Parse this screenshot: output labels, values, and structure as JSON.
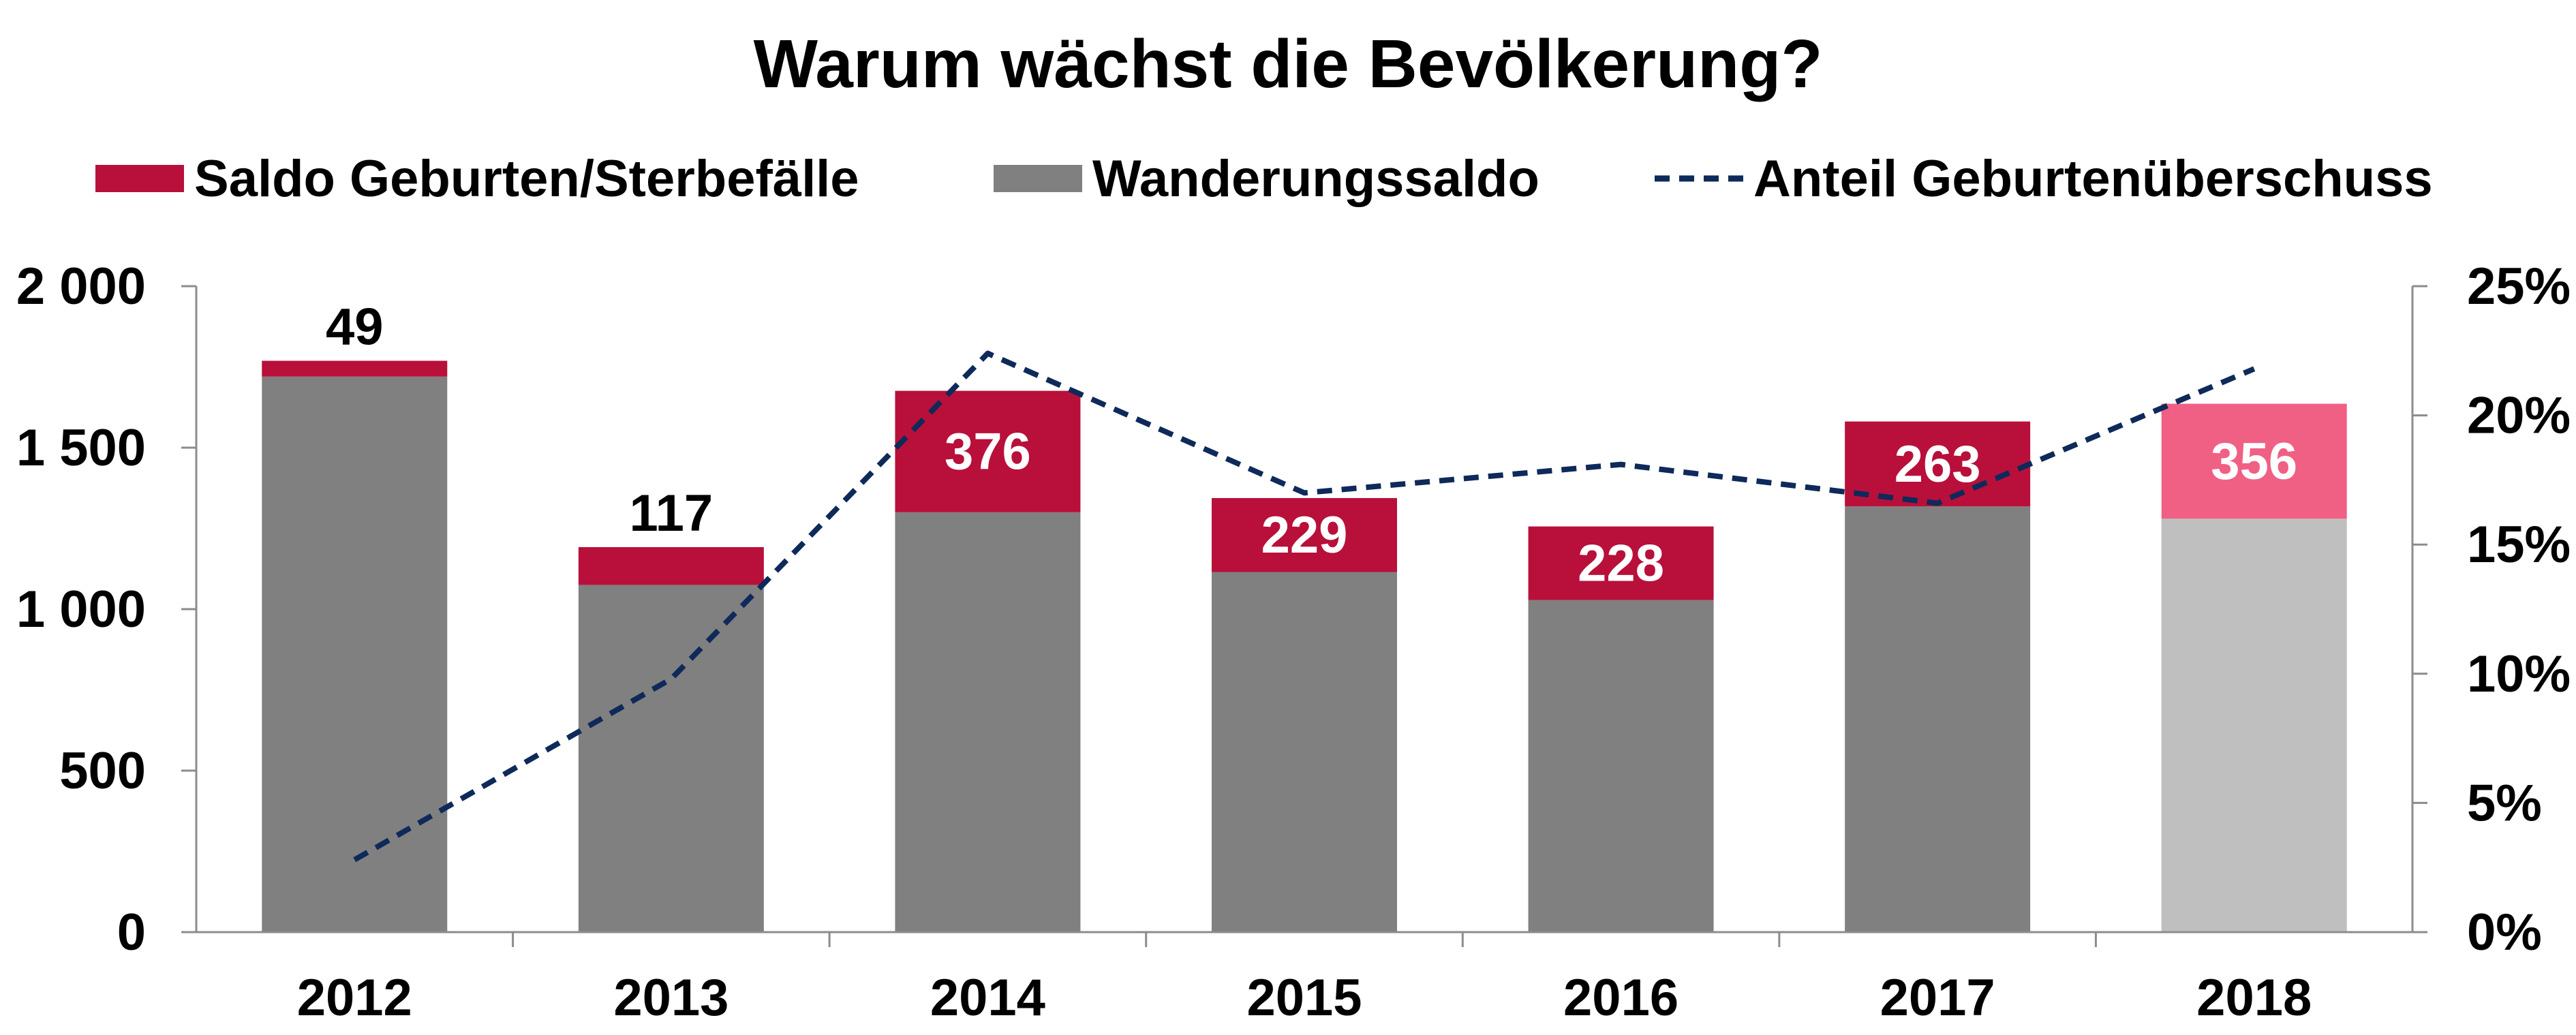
{
  "chart_data": {
    "type": "bar",
    "stacked": true,
    "title": "Warum wächst die Bevölkerung?",
    "categories": [
      "2012",
      "2013",
      "2014",
      "2015",
      "2016",
      "2017",
      "2018"
    ],
    "series": [
      {
        "name": "Wanderungssaldo",
        "axis": "left",
        "color": "#808080",
        "highlight_color": "#bfbfbf",
        "values": [
          1720,
          1075,
          1300,
          1115,
          1028,
          1318,
          1280
        ]
      },
      {
        "name": "Saldo Geburten/Sterbefälle",
        "axis": "left",
        "color": "#b8103a",
        "highlight_color": "#f06085",
        "values": [
          49,
          117,
          376,
          229,
          228,
          263,
          356
        ],
        "labels": [
          "49",
          "117",
          "376",
          "229",
          "228",
          "263",
          "356"
        ]
      },
      {
        "name": "Anteil Geburtenüberschuss",
        "type": "line",
        "style": "dashed",
        "axis": "right",
        "color": "#0e2a5a",
        "values": [
          2.8,
          9.8,
          22.4,
          17.0,
          18.1,
          16.6,
          21.8
        ]
      }
    ],
    "highlight_category": "2018",
    "y_left": {
      "ylim": [
        0,
        2000
      ],
      "ticks": [
        "0",
        "500",
        "1 000",
        "1 500",
        "2 000"
      ],
      "tick_values": [
        0,
        500,
        1000,
        1500,
        2000
      ]
    },
    "y_right": {
      "ylim": [
        0,
        25
      ],
      "ticks": [
        "0%",
        "5%",
        "10%",
        "15%",
        "20%",
        "25%"
      ],
      "tick_values": [
        0,
        5,
        10,
        15,
        20,
        25
      ]
    },
    "xlabel": "",
    "ylabel": "",
    "grid": false,
    "legend": "top"
  }
}
